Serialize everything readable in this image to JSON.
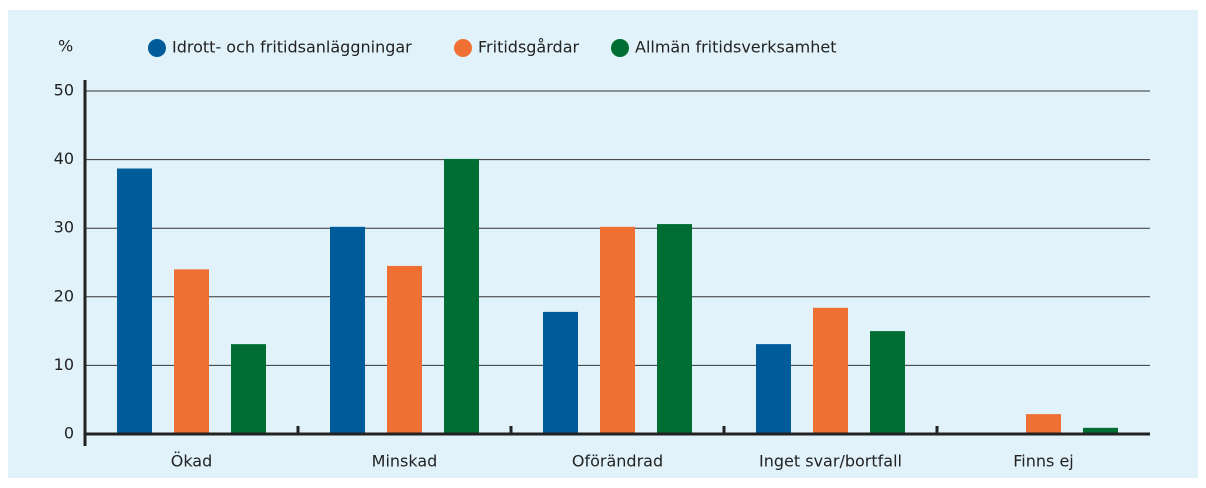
{
  "chart_data": {
    "type": "bar",
    "y_axis_label": "%",
    "categories": [
      "Ökad",
      "Minskad",
      "Oförändrad",
      "Inget svar/bortfall",
      "Finns ej"
    ],
    "series": [
      {
        "name": "Idrott- och fritidsanläggningar",
        "color": "#005b9a",
        "values": [
          38.7,
          30.2,
          17.8,
          13.1,
          0
        ]
      },
      {
        "name": "Fritidsgårdar",
        "color": "#f07033",
        "values": [
          24.0,
          24.5,
          30.2,
          18.4,
          2.9
        ]
      },
      {
        "name": "Allmän fritidsverksamhet",
        "color": "#006e33",
        "values": [
          13.1,
          40.1,
          30.6,
          15.0,
          0.9
        ]
      }
    ],
    "ylim": [
      0,
      50
    ],
    "yticks": [
      0,
      10,
      20,
      30,
      40,
      50
    ],
    "grid": true
  }
}
